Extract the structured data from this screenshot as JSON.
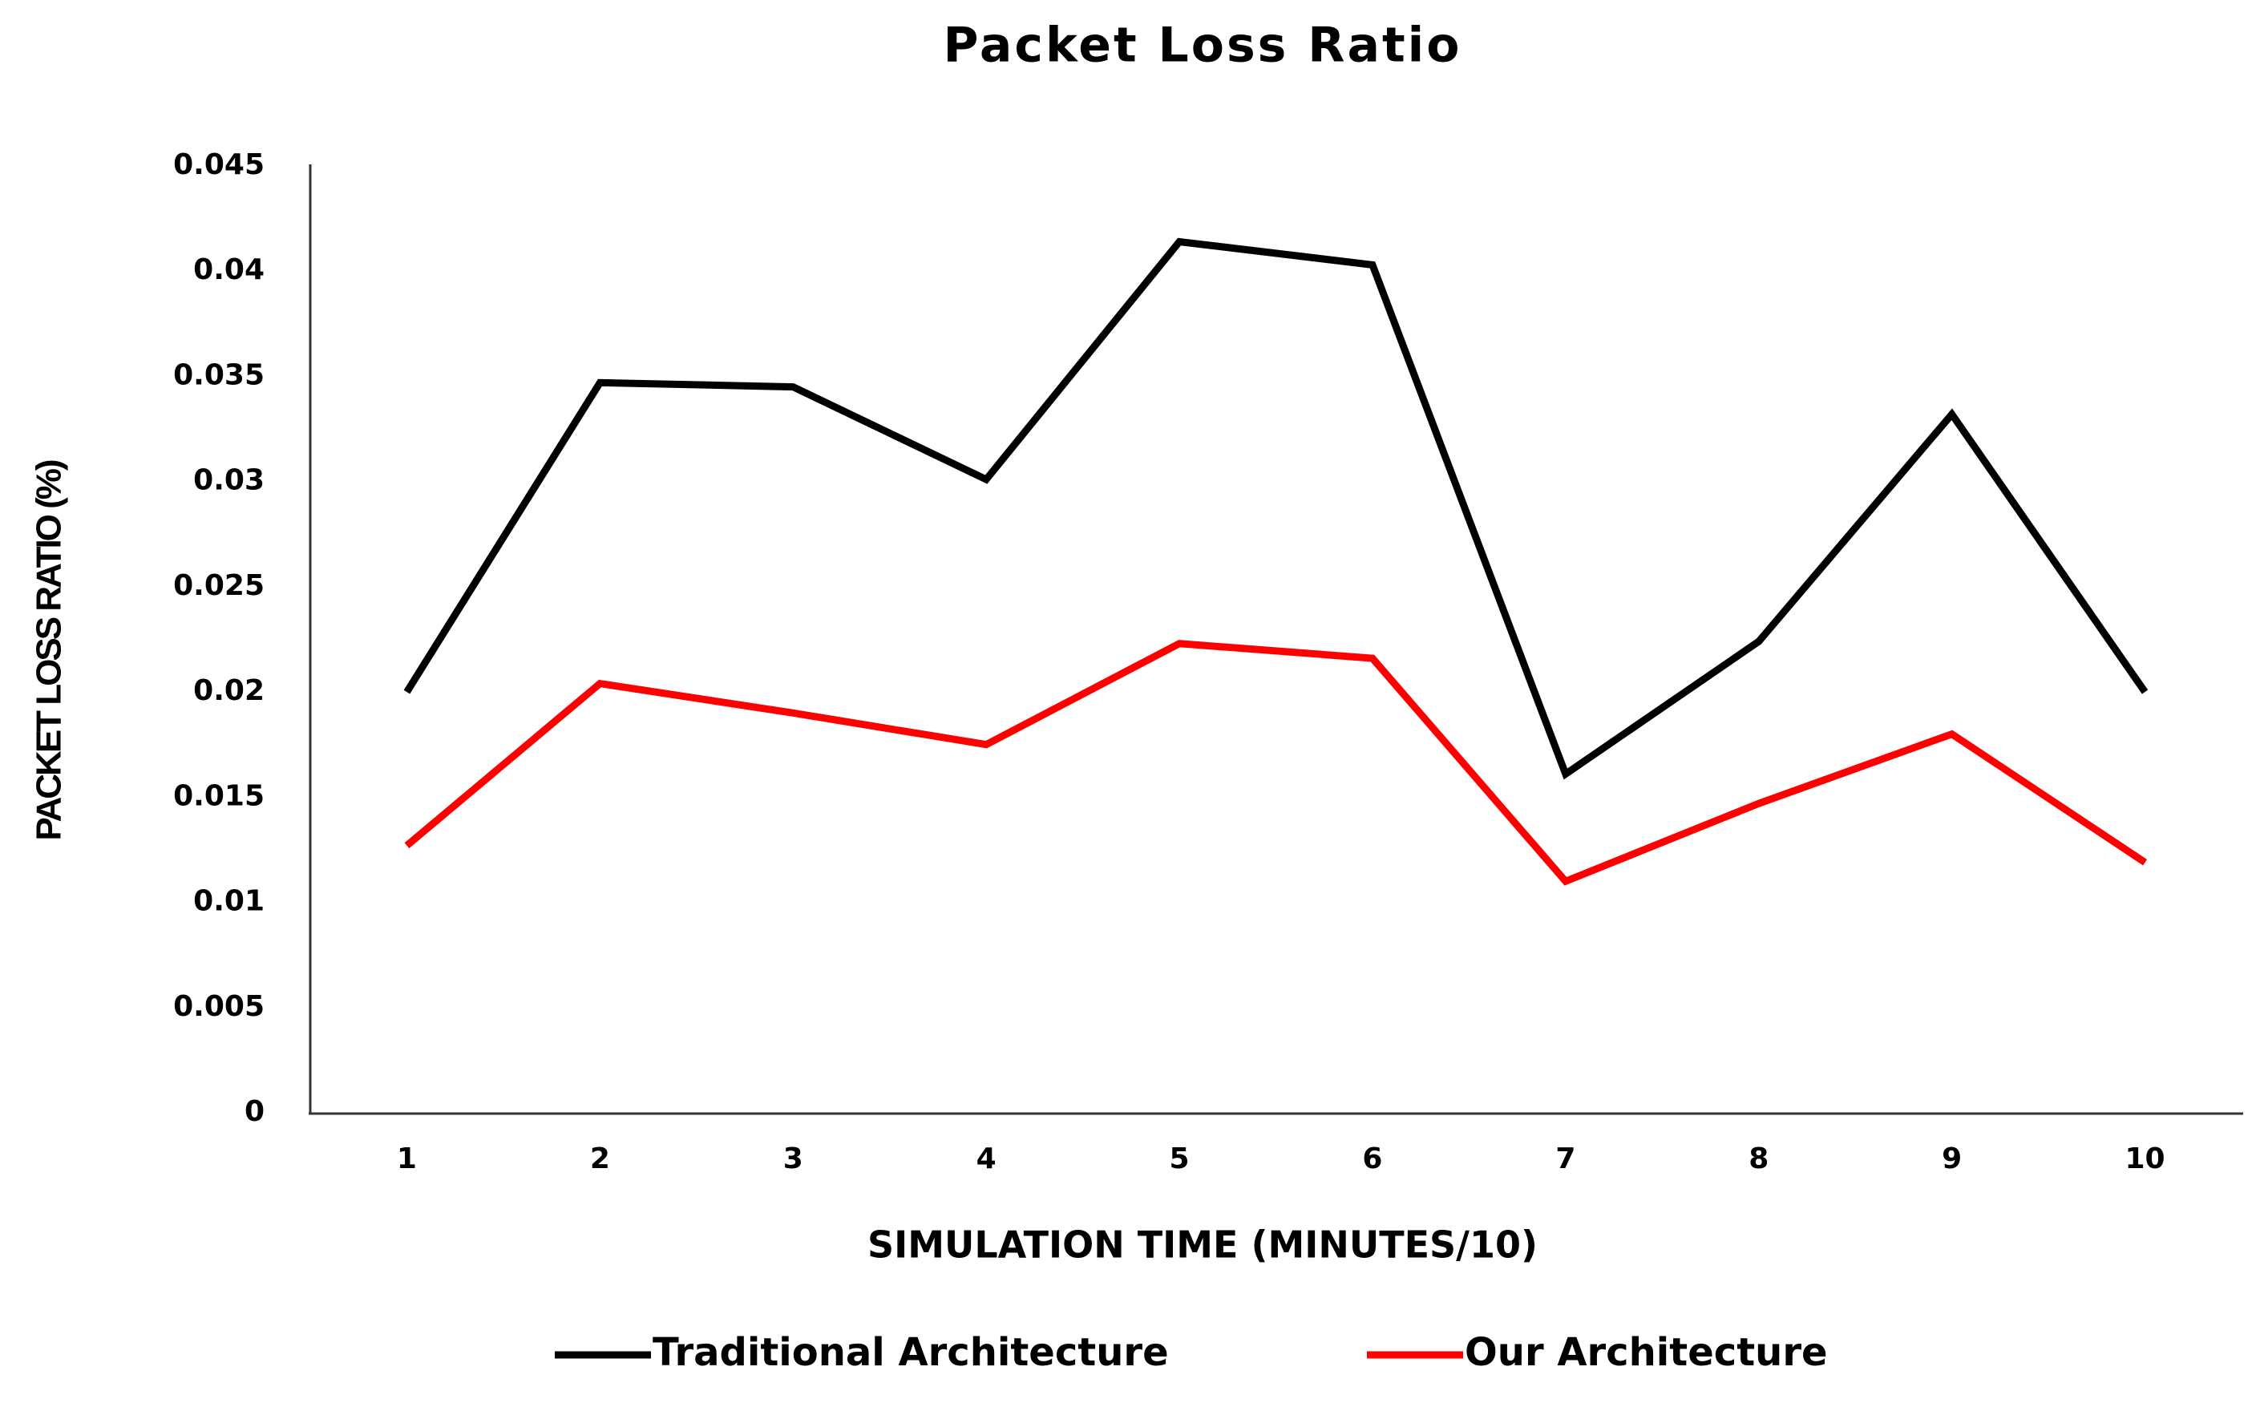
{
  "chart_data": {
    "type": "line",
    "title": "Packet Loss Ratio",
    "x_label": "SIMULATION TIME (MINUTES/10)",
    "y_label": "PACKET LOSS RATIO (%)",
    "categories": [
      "1",
      "2",
      "3",
      "4",
      "5",
      "6",
      "7",
      "8",
      "9",
      "10"
    ],
    "series": [
      {
        "name": "Traditional Architecture",
        "color": "#000000",
        "values": [
          0.02,
          0.0347,
          0.0345,
          0.0301,
          0.0414,
          0.0403,
          0.0161,
          0.0224,
          0.0332,
          0.02
        ]
      },
      {
        "name": "Our Architecture",
        "color": "#ff0000",
        "values": [
          0.0127,
          0.0204,
          0.019,
          0.0175,
          0.0223,
          0.0216,
          0.011,
          0.0147,
          0.018,
          0.0119
        ]
      }
    ],
    "ylim": [
      0,
      0.045
    ],
    "yticks": [
      0,
      0.005,
      0.01,
      0.015,
      0.02,
      0.025,
      0.03,
      0.035,
      0.04,
      0.045
    ],
    "grid": false,
    "legend": "bottom"
  }
}
